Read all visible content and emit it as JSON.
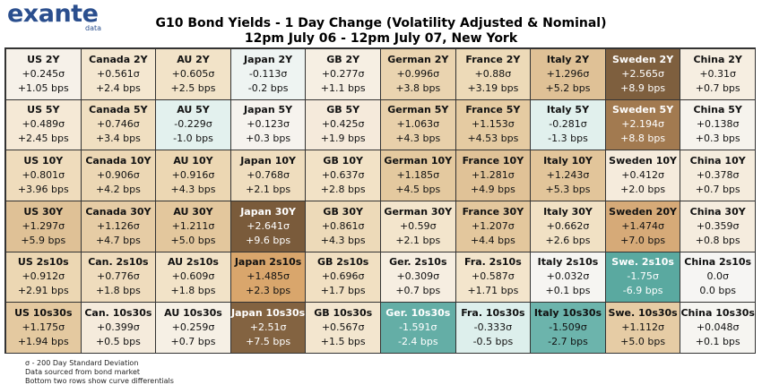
{
  "logo": {
    "name": "exante",
    "sub": "data"
  },
  "header": {
    "title": "G10 Bond Yields - 1 Day Change (Volatility Adjusted & Nominal)",
    "subtitle": "12pm July 06 - 12pm July 07, New York"
  },
  "table": {
    "rows": [
      [
        {
          "label": "US 2Y",
          "sigma": "+0.245σ",
          "bps": "+1.05 bps",
          "color": "#f6f1e9"
        },
        {
          "label": "Canada 2Y",
          "sigma": "+0.561σ",
          "bps": "+2.4 bps",
          "color": "#f4e7d0"
        },
        {
          "label": "AU 2Y",
          "sigma": "+0.605σ",
          "bps": "+2.5 bps",
          "color": "#f2e3c8"
        },
        {
          "label": "Japan 2Y",
          "sigma": "-0.113σ",
          "bps": "-0.2 bps",
          "color": "#eef4f2"
        },
        {
          "label": "GB 2Y",
          "sigma": "+0.277σ",
          "bps": "+1.1 bps",
          "color": "#f6efe3"
        },
        {
          "label": "German 2Y",
          "sigma": "+0.996σ",
          "bps": "+3.8 bps",
          "color": "#ead4b0"
        },
        {
          "label": "France 2Y",
          "sigma": "+0.88σ",
          "bps": "+3.19 bps",
          "color": "#eddab8"
        },
        {
          "label": "Italy 2Y",
          "sigma": "+1.296σ",
          "bps": "+5.2 bps",
          "color": "#dfc196"
        },
        {
          "label": "Sweden 2Y",
          "sigma": "+2.565σ",
          "bps": "+8.9 bps",
          "color": "#7e5f3e"
        },
        {
          "label": "China 2Y",
          "sigma": "+0.31σ",
          "bps": "+0.7 bps",
          "color": "#f6eee1"
        }
      ],
      [
        {
          "label": "US 5Y",
          "sigma": "+0.489σ",
          "bps": "+2.45 bps",
          "color": "#f5e9d6"
        },
        {
          "label": "Canada 5Y",
          "sigma": "+0.746σ",
          "bps": "+3.4 bps",
          "color": "#f0dfc1"
        },
        {
          "label": "AU 5Y",
          "sigma": "-0.229σ",
          "bps": "-1.0 bps",
          "color": "#e3f1ee"
        },
        {
          "label": "Japan 5Y",
          "sigma": "+0.123σ",
          "bps": "+0.3 bps",
          "color": "#f6f3ee"
        },
        {
          "label": "GB 5Y",
          "sigma": "+0.425σ",
          "bps": "+1.9 bps",
          "color": "#f5eadb"
        },
        {
          "label": "German 5Y",
          "sigma": "+1.063σ",
          "bps": "+4.3 bps",
          "color": "#e8d0aa"
        },
        {
          "label": "France 5Y",
          "sigma": "+1.153σ",
          "bps": "+4.53 bps",
          "color": "#e5cba2"
        },
        {
          "label": "Italy 5Y",
          "sigma": "-0.281σ",
          "bps": "-1.3 bps",
          "color": "#e1f0ed"
        },
        {
          "label": "Sweden 5Y",
          "sigma": "+2.194σ",
          "bps": "+8.8 bps",
          "color": "#a27a50"
        },
        {
          "label": "China 5Y",
          "sigma": "+0.138σ",
          "bps": "+0.3 bps",
          "color": "#f6f3ed"
        }
      ],
      [
        {
          "label": "US 10Y",
          "sigma": "+0.801σ",
          "bps": "+3.96 bps",
          "color": "#efdcbc"
        },
        {
          "label": "Canada 10Y",
          "sigma": "+0.906σ",
          "bps": "+4.2 bps",
          "color": "#ecd7b4"
        },
        {
          "label": "AU 10Y",
          "sigma": "+0.916σ",
          "bps": "+4.3 bps",
          "color": "#ecd7b3"
        },
        {
          "label": "Japan 10Y",
          "sigma": "+0.768σ",
          "bps": "+2.1 bps",
          "color": "#efddbe"
        },
        {
          "label": "GB 10Y",
          "sigma": "+0.637σ",
          "bps": "+2.8 bps",
          "color": "#f2e2c6"
        },
        {
          "label": "German 10Y",
          "sigma": "+1.185σ",
          "bps": "+4.5 bps",
          "color": "#e4c99f"
        },
        {
          "label": "France 10Y",
          "sigma": "+1.281σ",
          "bps": "+4.9 bps",
          "color": "#e0c297"
        },
        {
          "label": "Italy 10Y",
          "sigma": "+1.243σ",
          "bps": "+5.3 bps",
          "color": "#e2c59a"
        },
        {
          "label": "Sweden 10Y",
          "sigma": "+0.412σ",
          "bps": "+2.0 bps",
          "color": "#f5ebdc"
        },
        {
          "label": "China 10Y",
          "sigma": "+0.378σ",
          "bps": "+0.7 bps",
          "color": "#f5ecdd"
        }
      ],
      [
        {
          "label": "US 30Y",
          "sigma": "+1.297σ",
          "bps": "+5.9 bps",
          "color": "#dfc196"
        },
        {
          "label": "Canada 30Y",
          "sigma": "+1.126σ",
          "bps": "+4.7 bps",
          "color": "#e6cca5"
        },
        {
          "label": "AU 30Y",
          "sigma": "+1.211σ",
          "bps": "+5.0 bps",
          "color": "#e3c79d"
        },
        {
          "label": "Japan 30Y",
          "sigma": "+2.641σ",
          "bps": "+9.6 bps",
          "color": "#7a5b3b"
        },
        {
          "label": "GB 30Y",
          "sigma": "+0.861σ",
          "bps": "+4.3 bps",
          "color": "#eddab9"
        },
        {
          "label": "German 30Y",
          "sigma": "+0.59σ",
          "bps": "+2.1 bps",
          "color": "#f3e5cc"
        },
        {
          "label": "France 30Y",
          "sigma": "+1.207σ",
          "bps": "+4.4 bps",
          "color": "#e3c79d"
        },
        {
          "label": "Italy 30Y",
          "sigma": "+0.662σ",
          "bps": "+2.6 bps",
          "color": "#f1e1c4"
        },
        {
          "label": "Sweden 20Y",
          "sigma": "+1.474σ",
          "bps": "+7.0 bps",
          "color": "#d6aa78"
        },
        {
          "label": "China 30Y",
          "sigma": "+0.359σ",
          "bps": "+0.8 bps",
          "color": "#f5ecde"
        }
      ],
      [
        {
          "label": "US 2s10s",
          "sigma": "+0.912σ",
          "bps": "+2.91 bps",
          "color": "#ecd7b3"
        },
        {
          "label": "Can. 2s10s",
          "sigma": "+0.776σ",
          "bps": "+1.8 bps",
          "color": "#efdcbd"
        },
        {
          "label": "AU 2s10s",
          "sigma": "+0.609σ",
          "bps": "+1.8 bps",
          "color": "#f2e3c8"
        },
        {
          "label": "Japan 2s10s",
          "sigma": "+1.485σ",
          "bps": "+2.3 bps",
          "color": "#d9a66c"
        },
        {
          "label": "GB 2s10s",
          "sigma": "+0.696σ",
          "bps": "+1.7 bps",
          "color": "#f1e0c2"
        },
        {
          "label": "Ger. 2s10s",
          "sigma": "+0.309σ",
          "bps": "+0.7 bps",
          "color": "#f6eee1"
        },
        {
          "label": "Fra. 2s10s",
          "sigma": "+0.587σ",
          "bps": "+1.71 bps",
          "color": "#f3e5cc"
        },
        {
          "label": "Italy 2s10s",
          "sigma": "+0.032σ",
          "bps": "+0.1 bps",
          "color": "#f6f5f2"
        },
        {
          "label": "Swe. 2s10s",
          "sigma": "-1.75σ",
          "bps": "-6.9 bps",
          "color": "#5aa9a0"
        },
        {
          "label": "China 2s10s",
          "sigma": "0.0σ",
          "bps": "0.0 bps",
          "color": "#f6f5f3"
        }
      ],
      [
        {
          "label": "US 10s30s",
          "sigma": "+1.175σ",
          "bps": "+1.94 bps",
          "color": "#e4c9a0"
        },
        {
          "label": "Can. 10s30s",
          "sigma": "+0.399σ",
          "bps": "+0.5 bps",
          "color": "#f5ebdc"
        },
        {
          "label": "AU 10s30s",
          "sigma": "+0.259σ",
          "bps": "+0.7 bps",
          "color": "#f6f0e5"
        },
        {
          "label": "Japan 10s30s",
          "sigma": "+2.51σ",
          "bps": "+7.5 bps",
          "color": "#836341"
        },
        {
          "label": "GB 10s30s",
          "sigma": "+0.567σ",
          "bps": "+1.5 bps",
          "color": "#f3e6cf"
        },
        {
          "label": "Ger. 10s30s",
          "sigma": "-1.591σ",
          "bps": "-2.4 bps",
          "color": "#64aea6"
        },
        {
          "label": "Fra. 10s30s",
          "sigma": "-0.333σ",
          "bps": "-0.5 bps",
          "color": "#ddefec"
        },
        {
          "label": "Italy 10s30s",
          "sigma": "-1.509σ",
          "bps": "-2.7 bps",
          "color": "#6cb4ac"
        },
        {
          "label": "Swe. 10s30s",
          "sigma": "+1.112σ",
          "bps": "+5.0 bps",
          "color": "#e6cca5"
        },
        {
          "label": "China 10s30s",
          "sigma": "+0.048σ",
          "bps": "+0.1 bps",
          "color": "#f6f5f1"
        }
      ]
    ]
  },
  "notes": [
    "σ - 200 Day Standard Deviation",
    "Data sourced from bond market",
    "Bottom two rows show curve differentials"
  ]
}
